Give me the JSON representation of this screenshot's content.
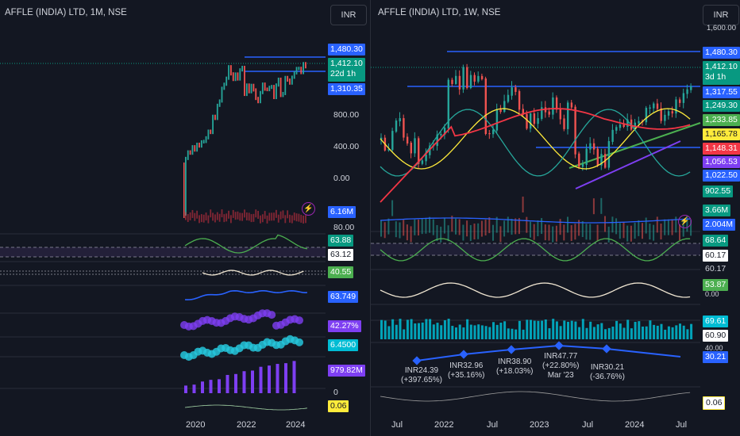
{
  "left_chart": {
    "symbol_title": "AFFLE (INDIA) LTD, 1M, NSE",
    "currency_button": "INR",
    "price_tags": {
      "high": "1,480.30",
      "last": "1,412.10",
      "countdown": "22d 1h",
      "level": "1,310.35"
    },
    "axis_labels": [
      "800.00",
      "400.00",
      "0.00",
      "80.00",
      "0"
    ],
    "indicator_tags": {
      "volume": "6.16M",
      "rsi_a": "63.88",
      "rsi_b": "63.12",
      "osc": "40.55",
      "line3": "63.749",
      "purple_pct": "42.27%",
      "cyan_value": "6.4500",
      "bar_volume": "979.82M",
      "bottom": "0.06"
    },
    "x_axis": [
      "2020",
      "2022",
      "2024"
    ],
    "colors": {
      "up": "#26a69a",
      "down": "#ef5350",
      "blue_tag": "#2962ff"
    }
  },
  "right_chart": {
    "symbol_title": "AFFLE (INDIA) LTD, 1W, NSE",
    "currency_button": "INR",
    "top_axis_label": "1,600.00",
    "price_tags": {
      "high": "1,480.30",
      "last": "1,412.10",
      "countdown": "3d 1h",
      "level1": "1,317.55",
      "ma1": "1,249.30",
      "ma2": "1,233.85",
      "ma3": "1,165.78",
      "level2": "1,148.31",
      "ma4": "1,056.53",
      "level3": "1,022.50",
      "ma5": "902.55"
    },
    "indicator_tags": {
      "volume_a": "3.66M",
      "volume_b": "2.004M",
      "rsi_a": "68.64",
      "rsi_b": "60.17",
      "rsi_c": "60.17",
      "osc": "53.87",
      "osc_axis": "0.00",
      "hist_a": "69.61",
      "hist_b": "60.90",
      "pct_axis": "40.00",
      "pct_tag": "30.21",
      "bottom": "0.06"
    },
    "annotations": [
      {
        "price": "INR24.39",
        "change": "(+397.65%)"
      },
      {
        "price": "INR32.96",
        "change": "(+35.16%)"
      },
      {
        "price": "INR38.90",
        "change": "(+18.03%)"
      },
      {
        "price": "INR47.77",
        "change": "(+22.80%)",
        "date": "Mar '23"
      },
      {
        "price": "INR30.21",
        "change": "(-36.76%)"
      }
    ],
    "x_axis": [
      "Jul",
      "2022",
      "Jul",
      "2023",
      "Jul",
      "2024",
      "Jul"
    ]
  }
}
